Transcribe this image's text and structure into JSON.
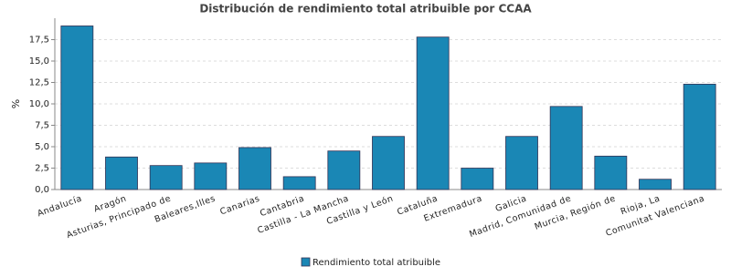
{
  "chart_data": {
    "type": "bar",
    "title": "Distribución de rendimiento total atribuible por CCAA",
    "y_label": "%",
    "categories": [
      "Andalucía",
      "Aragón",
      "Asturias, Principado de",
      "Baleares,Illes",
      "Canarias",
      "Cantabria",
      "Castilla - La Mancha",
      "Castilla y León",
      "Cataluña",
      "Extremadura",
      "Galicia",
      "Madrid, Comunidad de",
      "Murcia, Región de",
      "Rioja, La",
      "Comunitat Valenciana"
    ],
    "series": [
      {
        "name": "Rendimiento total atribuible",
        "color": "#1a87b5",
        "values": [
          19.1,
          3.8,
          2.8,
          3.1,
          4.9,
          1.5,
          4.5,
          6.2,
          17.8,
          2.5,
          6.2,
          9.7,
          3.9,
          1.2,
          12.3
        ]
      }
    ],
    "ylim": [
      0,
      20
    ],
    "yticks": [
      {
        "value": 0,
        "label": "0,0"
      },
      {
        "value": 2.5,
        "label": "2,5"
      },
      {
        "value": 5,
        "label": "5,0"
      },
      {
        "value": 7.5,
        "label": "7,5"
      },
      {
        "value": 10,
        "label": "10,0"
      },
      {
        "value": 12.5,
        "label": "12,5"
      },
      {
        "value": 15,
        "label": "15,0"
      },
      {
        "value": 17.5,
        "label": "17,5"
      }
    ],
    "grid": true
  }
}
